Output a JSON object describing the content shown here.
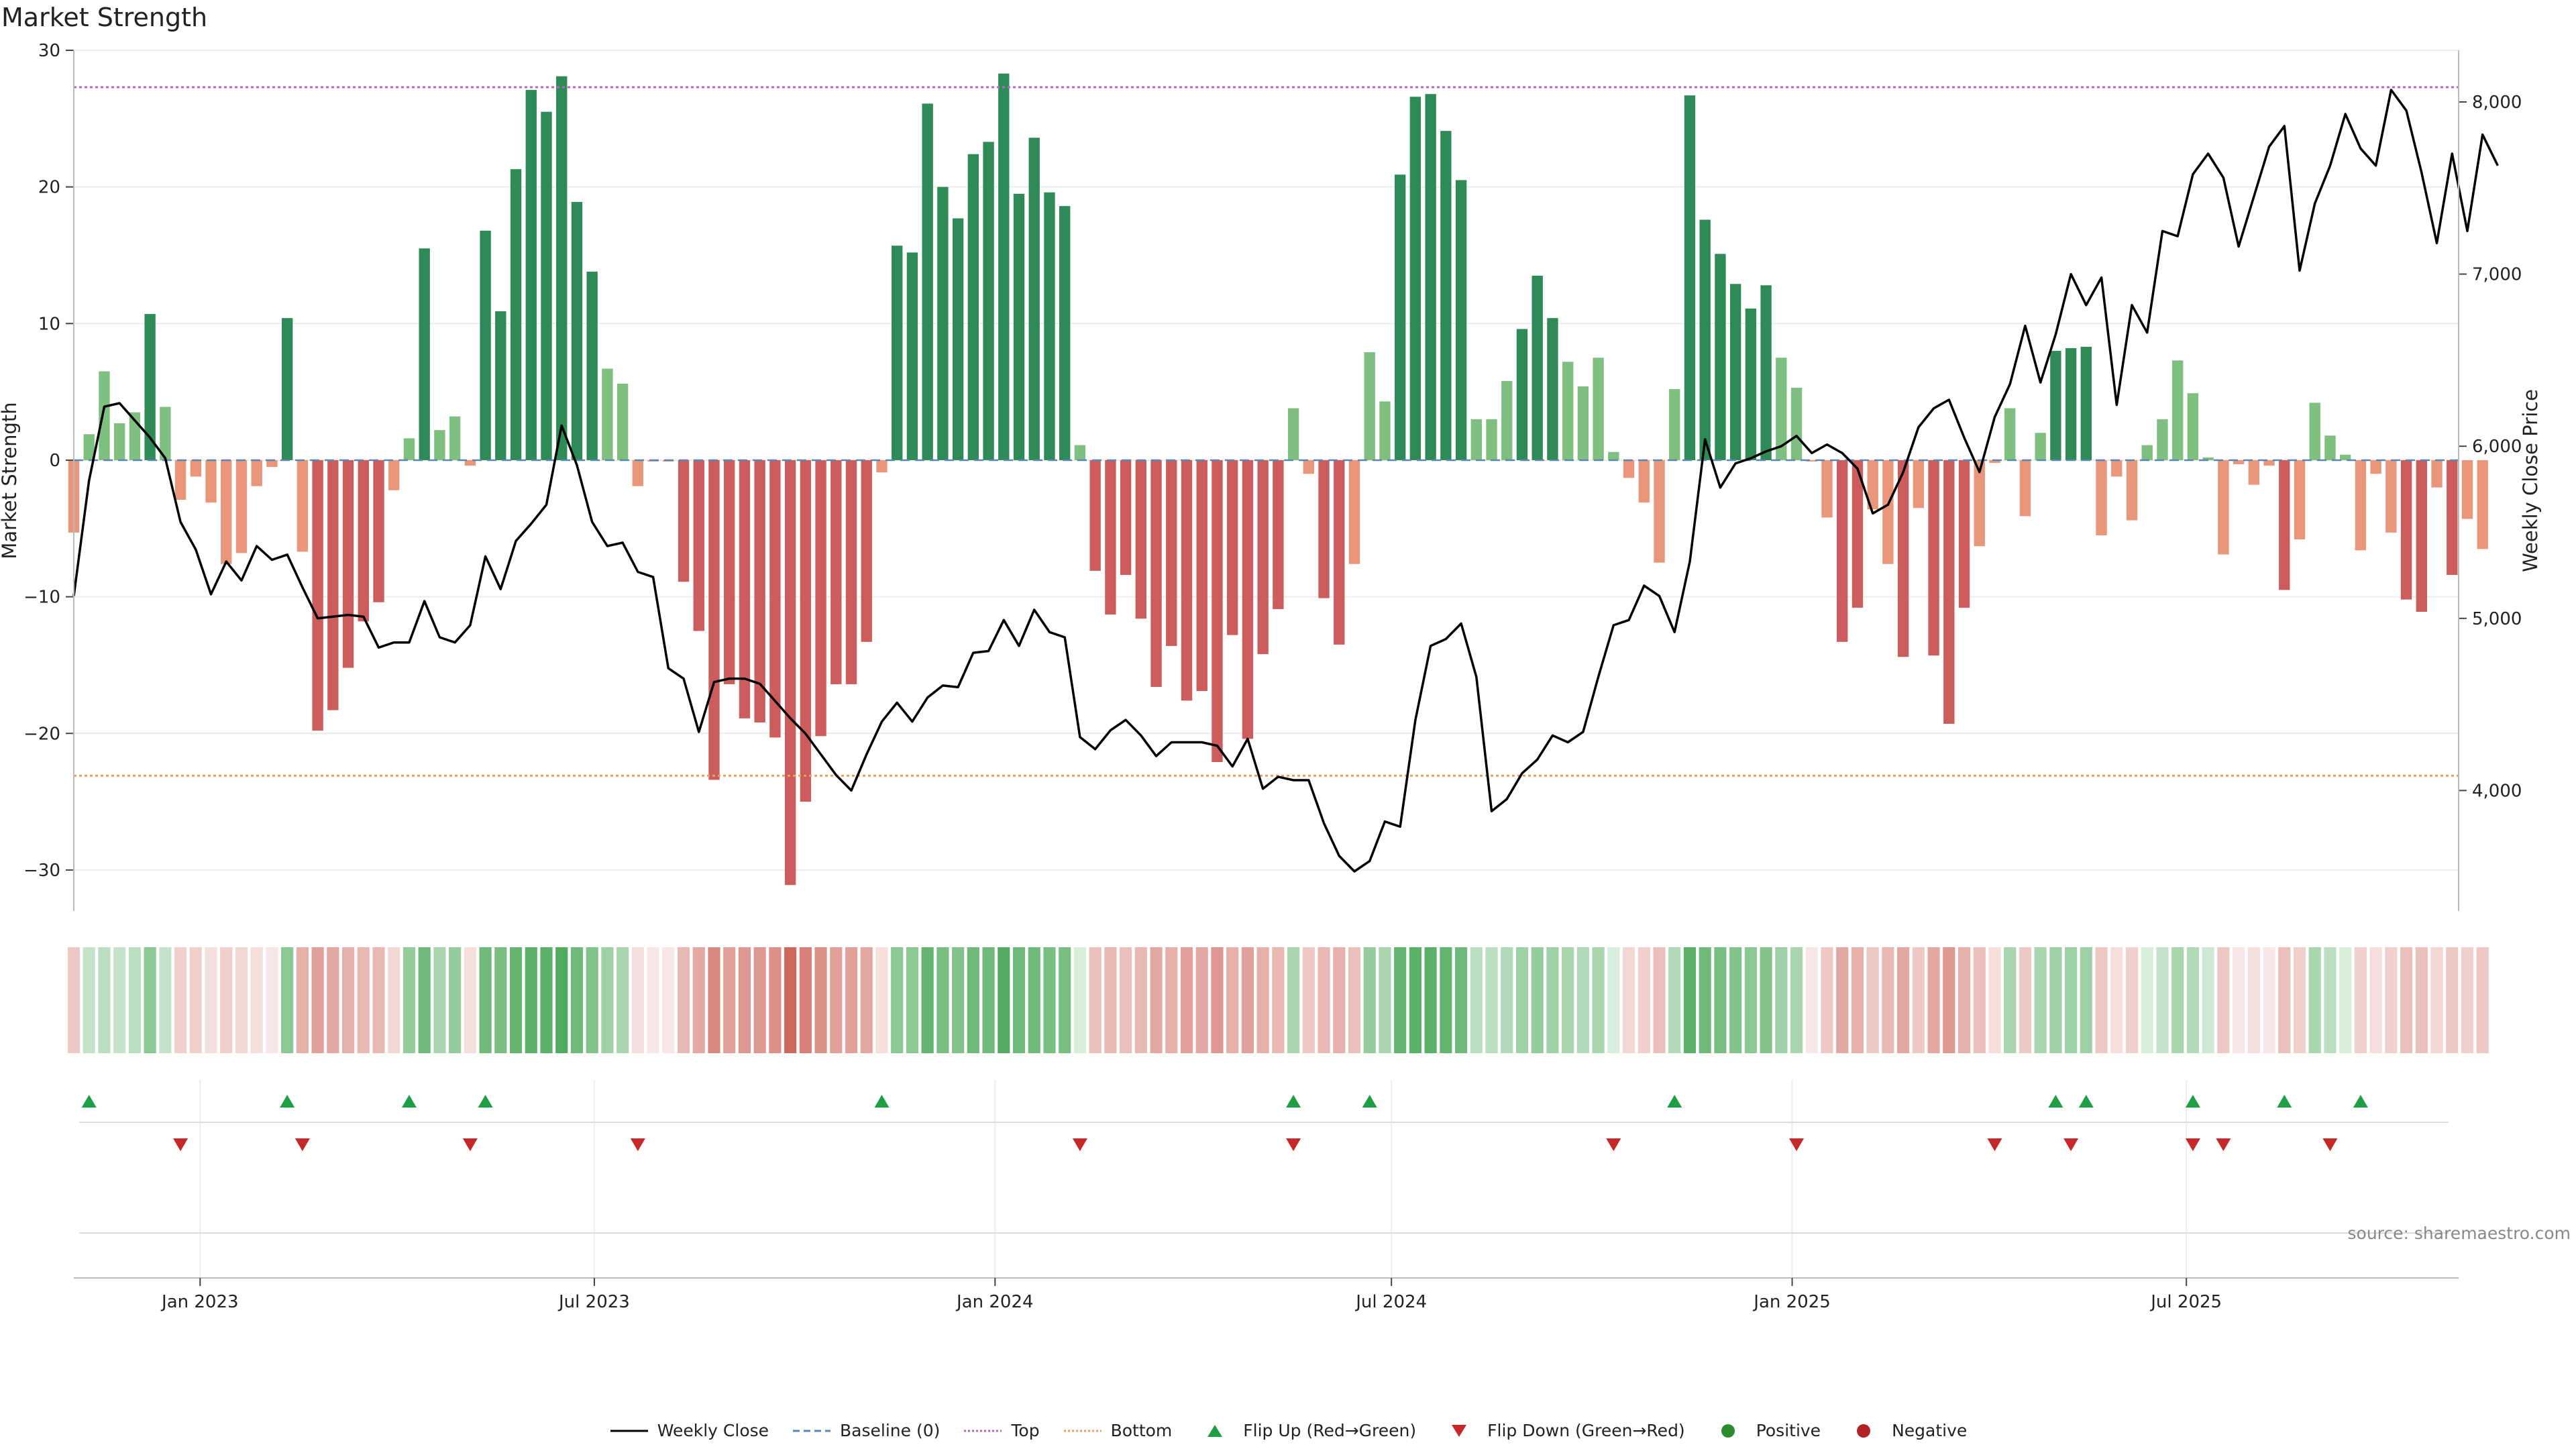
{
  "title": "Market Strength",
  "source_note": "source: sharemaestro.com",
  "colors": {
    "pos_strong": "#2e8b57",
    "pos_weak": "#7fbf7f",
    "neg_strong": "#cd5c5c",
    "neg_weak": "#e9967a",
    "price": "#000000",
    "top_line": "#b567c4",
    "bottom_line": "#e8a062",
    "baseline": "#5a88b0",
    "flip_up": "#1e9e45",
    "flip_down": "#c62828",
    "positive_dot": "#2e8b2e",
    "negative_dot": "#b22222"
  },
  "legend": [
    {
      "label": "Weekly Close",
      "kind": "line",
      "color": "#000000",
      "dash": ""
    },
    {
      "label": "Baseline (0)",
      "kind": "line",
      "color": "#5a88b0",
      "dash": "10,6"
    },
    {
      "label": "Top",
      "kind": "line",
      "color": "#b567c4",
      "dash": "3,3"
    },
    {
      "label": "Bottom",
      "kind": "line",
      "color": "#e8a062",
      "dash": "3,3"
    },
    {
      "label": "Flip Up (Red→Green)",
      "kind": "tri-up",
      "color": "#1e9e45"
    },
    {
      "label": "Flip Down (Green→Red)",
      "kind": "tri-down",
      "color": "#c62828"
    },
    {
      "label": "Positive",
      "kind": "dot",
      "color": "#2e8b2e"
    },
    {
      "label": "Negative",
      "kind": "dot",
      "color": "#b22222"
    }
  ],
  "chart_data": {
    "type": "bar",
    "title": "Market Strength",
    "ylabel": "Market Strength",
    "y2label": "Weekly Close Price",
    "ylim": [
      -33,
      30
    ],
    "y2lim": [
      3300,
      8300
    ],
    "yticks": [
      30,
      20,
      10,
      0,
      -10,
      -20,
      -30
    ],
    "y2ticks": [
      8000,
      7000,
      6000,
      5000,
      4000
    ],
    "y2ticklabels": [
      "8,000",
      "7,000",
      "6,000",
      "5,000",
      "4,000"
    ],
    "x_start": "2022-11-04",
    "x_end": "2025-11-03",
    "xticks": [
      {
        "date": "2023-01-01",
        "label": "Jan 2023"
      },
      {
        "date": "2023-07-01",
        "label": "Jul 2023"
      },
      {
        "date": "2024-01-01",
        "label": "Jan 2024"
      },
      {
        "date": "2024-07-01",
        "label": "Jul 2024"
      },
      {
        "date": "2025-01-01",
        "label": "Jan 2025"
      },
      {
        "date": "2025-07-01",
        "label": "Jul 2025"
      }
    ],
    "first_week": "2022-11-04",
    "top": 27.3,
    "bottom": -23.1,
    "baseline": 0,
    "strength": [
      -5.3,
      1.9,
      6.5,
      2.7,
      3.5,
      10.7,
      3.9,
      -2.9,
      -1.2,
      -3.1,
      -7.6,
      -6.8,
      -1.9,
      -0.5,
      10.4,
      -6.7,
      -19.8,
      -18.3,
      -15.2,
      -11.8,
      -10.4,
      -2.2,
      1.6,
      15.5,
      2.2,
      3.2,
      -0.4,
      16.8,
      10.9,
      21.3,
      27.1,
      25.5,
      28.1,
      18.9,
      13.8,
      6.7,
      5.6,
      -1.9,
      -0.1,
      -0.1,
      -8.9,
      -12.5,
      -23.4,
      -16.4,
      -18.9,
      -19.2,
      -20.3,
      -31.1,
      -25.0,
      -20.2,
      -16.4,
      -16.4,
      -13.3,
      -0.9,
      15.7,
      15.2,
      26.1,
      20.0,
      17.7,
      22.4,
      23.3,
      28.3,
      19.5,
      23.6,
      19.6,
      18.6,
      1.1,
      -8.1,
      -11.3,
      -8.4,
      -11.6,
      -16.6,
      -13.6,
      -17.6,
      -16.9,
      -22.1,
      -12.8,
      -20.4,
      -14.2,
      -10.9,
      3.8,
      -1.0,
      -10.1,
      -13.5,
      -7.6,
      7.9,
      4.3,
      20.9,
      26.6,
      26.8,
      24.1,
      20.5,
      3.0,
      3.0,
      5.8,
      9.6,
      13.5,
      10.4,
      7.2,
      5.4,
      7.5,
      0.6,
      -1.3,
      -3.1,
      -7.5,
      5.2,
      26.7,
      17.6,
      15.1,
      12.9,
      11.1,
      12.8,
      7.5,
      5.3,
      -0.1,
      -4.2,
      -13.3,
      -10.8,
      -3.6,
      -7.6,
      -14.4,
      -3.5,
      -14.3,
      -19.3,
      -10.8,
      -6.3,
      -0.2,
      3.8,
      -4.1,
      2.0,
      8.0,
      8.2,
      8.3,
      -5.5,
      -1.2,
      -4.4,
      1.1,
      3.0,
      7.3,
      4.9,
      0.2,
      -6.9,
      -0.3,
      -1.8,
      -0.4,
      -9.5,
      -5.8,
      4.2,
      1.8,
      0.4,
      -6.6,
      -1.0,
      -5.3,
      -10.2,
      -11.1,
      -2.0,
      -8.4,
      -4.3,
      -6.5
    ],
    "weekly_close": [
      5130,
      5800,
      6230,
      6250,
      6150,
      6050,
      5930,
      5560,
      5400,
      5140,
      5330,
      5220,
      5420,
      5340,
      5370,
      5180,
      5000,
      5010,
      5020,
      5010,
      4830,
      4860,
      4860,
      5100,
      4890,
      4860,
      4960,
      5360,
      5170,
      5450,
      5550,
      5660,
      6120,
      5890,
      5560,
      5420,
      5440,
      5270,
      5240,
      4710,
      4650,
      4340,
      4630,
      4650,
      4650,
      4620,
      4520,
      4420,
      4330,
      4210,
      4090,
      4000,
      4210,
      4400,
      4510,
      4400,
      4540,
      4610,
      4600,
      4800,
      4810,
      4990,
      4840,
      5050,
      4920,
      4890,
      4310,
      4240,
      4350,
      4410,
      4320,
      4200,
      4280,
      4280,
      4280,
      4260,
      4140,
      4300,
      4010,
      4080,
      4060,
      4060,
      3810,
      3620,
      3530,
      3590,
      3820,
      3790,
      4410,
      4840,
      4880,
      4970,
      4660,
      3880,
      3950,
      4100,
      4180,
      4320,
      4280,
      4340,
      4660,
      4960,
      4990,
      5190,
      5130,
      4920,
      5330,
      6040,
      5760,
      5900,
      5930,
      5970,
      6000,
      6060,
      5960,
      6010,
      5960,
      5870,
      5610,
      5660,
      5850,
      6110,
      6220,
      6270,
      6050,
      5850,
      6170,
      6360,
      6700,
      6370,
      6650,
      7000,
      6820,
      6980,
      6240,
      6820,
      6660,
      7250,
      7220,
      7580,
      7700,
      7560,
      7160,
      7450,
      7740,
      7860,
      7020,
      7410,
      7630,
      7930,
      7730,
      7630,
      8070,
      7950,
      7590,
      7180,
      7700,
      7250,
      7810,
      7630
    ],
    "flip_up_weeks": [
      1,
      14,
      22,
      27,
      53,
      80,
      85,
      105,
      130,
      132,
      139,
      145,
      150
    ],
    "flip_down_weeks": [
      7,
      15,
      26,
      37,
      66,
      80,
      101,
      113,
      126,
      131,
      139,
      141,
      148
    ],
    "heat_intensity": [
      0.35,
      0.3,
      0.35,
      0.3,
      0.35,
      0.6,
      0.3,
      0.3,
      0.3,
      0.2,
      0.3,
      0.25,
      0.2,
      0.15,
      0.6,
      0.5,
      0.6,
      0.55,
      0.5,
      0.45,
      0.45,
      0.25,
      0.55,
      0.75,
      0.45,
      0.55,
      0.2,
      0.75,
      0.7,
      0.8,
      0.85,
      0.85,
      0.9,
      0.75,
      0.65,
      0.5,
      0.45,
      0.2,
      0.15,
      0.15,
      0.45,
      0.55,
      0.75,
      0.6,
      0.65,
      0.65,
      0.7,
      0.95,
      0.8,
      0.7,
      0.6,
      0.6,
      0.55,
      0.2,
      0.6,
      0.6,
      0.8,
      0.7,
      0.65,
      0.75,
      0.75,
      0.9,
      0.75,
      0.75,
      0.7,
      0.7,
      0.2,
      0.4,
      0.45,
      0.4,
      0.45,
      0.55,
      0.5,
      0.6,
      0.55,
      0.65,
      0.5,
      0.6,
      0.5,
      0.45,
      0.45,
      0.35,
      0.45,
      0.5,
      0.4,
      0.55,
      0.45,
      0.8,
      0.85,
      0.85,
      0.8,
      0.75,
      0.35,
      0.35,
      0.4,
      0.5,
      0.55,
      0.5,
      0.45,
      0.4,
      0.45,
      0.2,
      0.25,
      0.3,
      0.4,
      0.4,
      0.85,
      0.75,
      0.7,
      0.65,
      0.6,
      0.65,
      0.5,
      0.45,
      0.15,
      0.35,
      0.55,
      0.5,
      0.35,
      0.45,
      0.55,
      0.35,
      0.55,
      0.65,
      0.5,
      0.4,
      0.2,
      0.45,
      0.35,
      0.45,
      0.5,
      0.5,
      0.5,
      0.35,
      0.2,
      0.3,
      0.2,
      0.3,
      0.45,
      0.4,
      0.25,
      0.35,
      0.15,
      0.2,
      0.15,
      0.4,
      0.3,
      0.45,
      0.35,
      0.2,
      0.3,
      0.2,
      0.3,
      0.4,
      0.4,
      0.25,
      0.35,
      0.3,
      0.35
    ]
  }
}
